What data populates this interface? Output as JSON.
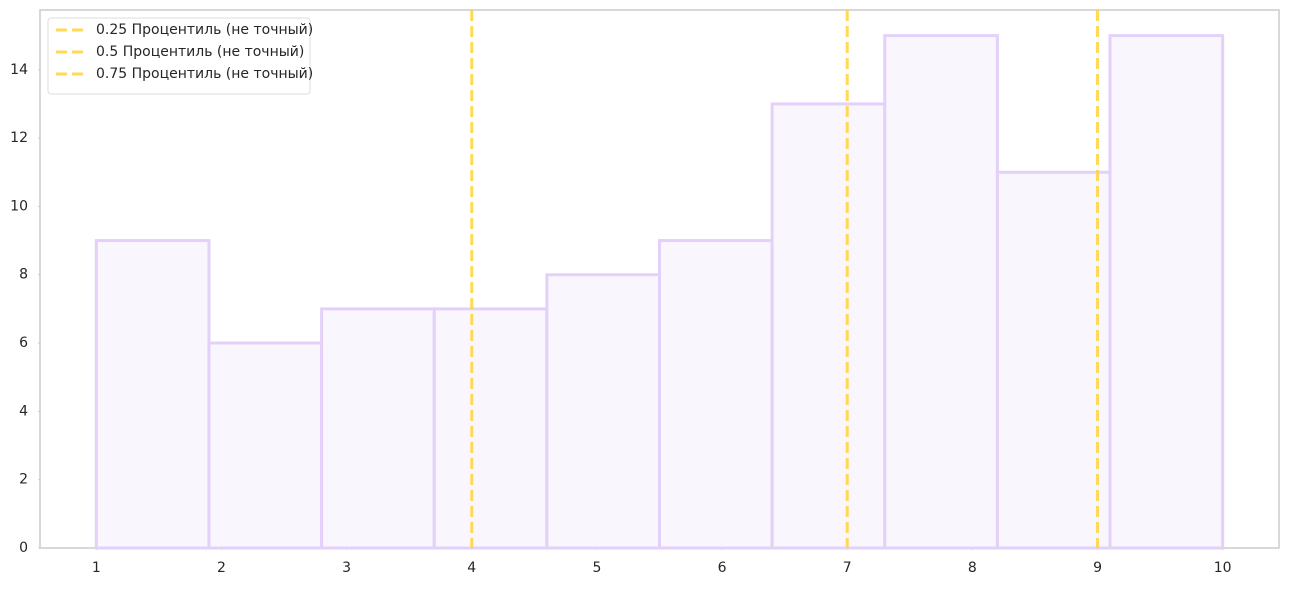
{
  "chart_data": {
    "type": "histogram",
    "bins": [
      1,
      1.9,
      2.8,
      3.7,
      4.6,
      5.5,
      6.4,
      7.3,
      8.2,
      9.1,
      10
    ],
    "counts": [
      9,
      6,
      7,
      7,
      8,
      9,
      13,
      15,
      11,
      15
    ],
    "color": "#faf6fe",
    "edgecolor": "#e3d1fa",
    "vlines": [
      {
        "name": "0.25 Процентиль (не точный)",
        "x": 4,
        "color": "#ffd43b"
      },
      {
        "name": "0.5 Процентиль (не точный)",
        "x": 7,
        "color": "#ffd43b"
      },
      {
        "name": "0.75 Процентиль (не точный)",
        "x": 9,
        "color": "#ffd43b"
      }
    ],
    "xlim": [
      0.55,
      10.45
    ],
    "ylim": [
      0,
      15.75
    ],
    "xticks": [
      1,
      2,
      3,
      4,
      5,
      6,
      7,
      8,
      9,
      10
    ],
    "yticks": [
      0,
      2,
      4,
      6,
      8,
      10,
      12,
      14
    ],
    "legend": "upper left",
    "grid": false
  }
}
